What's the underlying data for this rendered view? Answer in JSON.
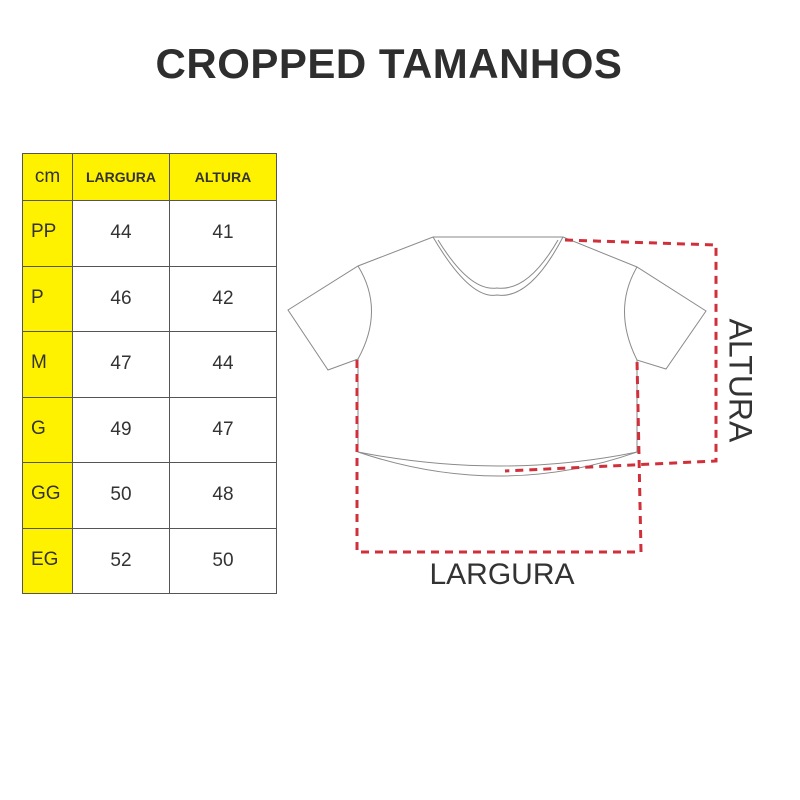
{
  "title": "CROPPED TAMANHOS",
  "table": {
    "headers": [
      "cm",
      "LARGURA",
      "ALTURA"
    ],
    "rows": [
      {
        "size": "PP",
        "largura": "44",
        "altura": "41"
      },
      {
        "size": "P",
        "largura": "46",
        "altura": "42"
      },
      {
        "size": "M",
        "largura": "47",
        "altura": "44"
      },
      {
        "size": "G",
        "largura": "49",
        "altura": "47"
      },
      {
        "size": "GG",
        "largura": "50",
        "altura": "48"
      },
      {
        "size": "EG",
        "largura": "52",
        "altura": "50"
      }
    ]
  },
  "diagram": {
    "height_label": "ALTURA",
    "width_label": "LARGURA",
    "measure_color": "#d0303a",
    "outline_color": "#888888",
    "header_color": "#fff200"
  }
}
